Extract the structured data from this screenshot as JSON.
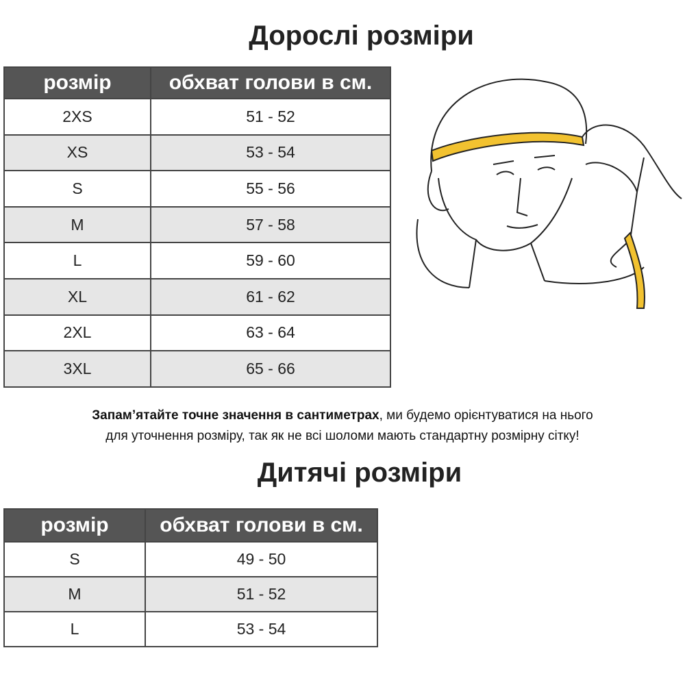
{
  "adult": {
    "title": "Дорослі розміри",
    "header": [
      "розмір",
      "обхват голови в см."
    ],
    "rows": [
      [
        "2XS",
        "51 - 52"
      ],
      [
        "XS",
        "53 - 54"
      ],
      [
        "S",
        "55 - 56"
      ],
      [
        "M",
        "57 - 58"
      ],
      [
        "L",
        "59 - 60"
      ],
      [
        "XL",
        "61 - 62"
      ],
      [
        "2XL",
        "63 - 64"
      ],
      [
        "3XL",
        "65 - 66"
      ]
    ]
  },
  "note": {
    "bold": "Запам’ятайте точне значення в сантиметрах",
    "rest": ", ми будемо орієнтуватися на нього",
    "line2": "для уточнення розміру, так як не всі шоломи мають стандартну розмірну сітку!"
  },
  "kids": {
    "title": "Дитячі розміри",
    "header": [
      "розмір",
      "обхват голови в см."
    ],
    "rows": [
      [
        "S",
        "49 - 50"
      ],
      [
        "M",
        "51 - 52"
      ],
      [
        "L",
        "53 - 54"
      ]
    ]
  },
  "colors": {
    "header_bg": "#555555",
    "alt_row": "#e6e6e6",
    "tape": "#f2c230"
  }
}
